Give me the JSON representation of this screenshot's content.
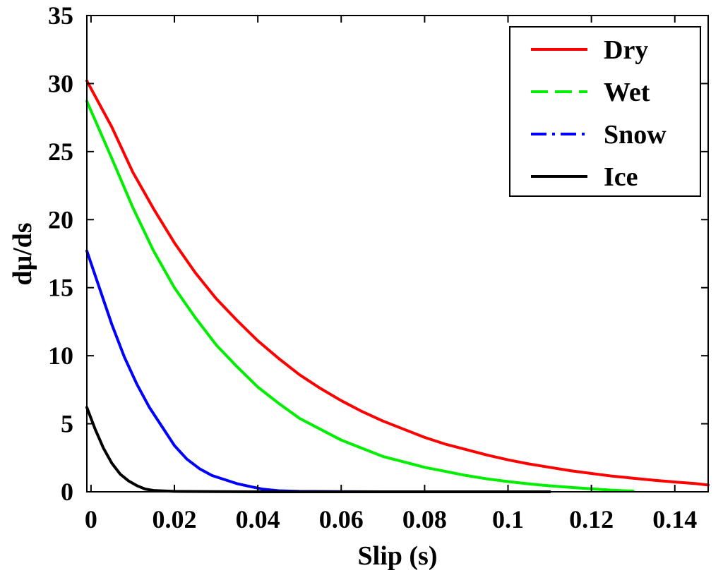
{
  "chart_data": {
    "type": "line",
    "title": "",
    "xlabel": "Slip (s)",
    "ylabel": "dμ/ds",
    "xlim": [
      -0.001,
      0.148
    ],
    "ylim": [
      0,
      35
    ],
    "grid": false,
    "legend_position": "top-right",
    "x_ticks": [
      {
        "value": 0,
        "label": "0"
      },
      {
        "value": 0.02,
        "label": "0.02"
      },
      {
        "value": 0.04,
        "label": "0.04"
      },
      {
        "value": 0.06,
        "label": "0.06"
      },
      {
        "value": 0.08,
        "label": "0.08"
      },
      {
        "value": 0.1,
        "label": "0.1"
      },
      {
        "value": 0.12,
        "label": "0.12"
      },
      {
        "value": 0.14,
        "label": "0.14"
      }
    ],
    "y_ticks": [
      {
        "value": 0,
        "label": "0"
      },
      {
        "value": 5,
        "label": "5"
      },
      {
        "value": 10,
        "label": "10"
      },
      {
        "value": 15,
        "label": "15"
      },
      {
        "value": 20,
        "label": "20"
      },
      {
        "value": 25,
        "label": "25"
      },
      {
        "value": 30,
        "label": "30"
      },
      {
        "value": 35,
        "label": "35"
      }
    ],
    "series": [
      {
        "name": "Dry",
        "color": "#ff0000",
        "dash": "solid",
        "x": [
          -0.001,
          0.005,
          0.01,
          0.015,
          0.02,
          0.025,
          0.03,
          0.035,
          0.04,
          0.045,
          0.05,
          0.055,
          0.06,
          0.065,
          0.07,
          0.075,
          0.08,
          0.085,
          0.09,
          0.095,
          0.1,
          0.105,
          0.11,
          0.115,
          0.12,
          0.125,
          0.13,
          0.135,
          0.14,
          0.145,
          0.148
        ],
        "y": [
          30.2,
          26.8,
          23.5,
          20.8,
          18.3,
          16.1,
          14.2,
          12.6,
          11.1,
          9.8,
          8.6,
          7.6,
          6.7,
          5.9,
          5.2,
          4.6,
          4.0,
          3.5,
          3.1,
          2.7,
          2.35,
          2.05,
          1.8,
          1.55,
          1.35,
          1.15,
          1.0,
          0.85,
          0.72,
          0.6,
          0.5
        ]
      },
      {
        "name": "Wet",
        "color": "#00ee00",
        "dash": "dashed",
        "x": [
          -0.001,
          0.005,
          0.01,
          0.015,
          0.02,
          0.025,
          0.03,
          0.035,
          0.04,
          0.045,
          0.05,
          0.055,
          0.06,
          0.065,
          0.07,
          0.075,
          0.08,
          0.085,
          0.09,
          0.095,
          0.1,
          0.105,
          0.11,
          0.115,
          0.12,
          0.125,
          0.13
        ],
        "y": [
          28.7,
          24.5,
          20.9,
          17.7,
          15.0,
          12.8,
          10.8,
          9.2,
          7.7,
          6.5,
          5.4,
          4.6,
          3.8,
          3.2,
          2.6,
          2.2,
          1.8,
          1.5,
          1.2,
          0.95,
          0.75,
          0.58,
          0.44,
          0.32,
          0.22,
          0.12,
          0.05
        ]
      },
      {
        "name": "Snow",
        "color": "#0000ff",
        "dash": "dashdot",
        "x": [
          -0.001,
          0.002,
          0.005,
          0.008,
          0.011,
          0.014,
          0.017,
          0.02,
          0.023,
          0.026,
          0.029,
          0.032,
          0.035,
          0.038,
          0.041,
          0.045,
          0.05,
          0.06,
          0.07,
          0.08,
          0.09,
          0.1,
          0.11
        ],
        "y": [
          17.7,
          15.0,
          12.3,
          9.9,
          7.9,
          6.2,
          4.8,
          3.4,
          2.4,
          1.7,
          1.2,
          0.9,
          0.6,
          0.4,
          0.2,
          0.08,
          0.03,
          0.01,
          0,
          0,
          0,
          0,
          0
        ]
      },
      {
        "name": "Ice",
        "color": "#000000",
        "dash": "solid",
        "x": [
          -0.001,
          0.001,
          0.003,
          0.005,
          0.007,
          0.009,
          0.011,
          0.013,
          0.015,
          0.02,
          0.03,
          0.04,
          0.06,
          0.08,
          0.1,
          0.11
        ],
        "y": [
          6.2,
          4.6,
          3.2,
          2.1,
          1.3,
          0.8,
          0.45,
          0.2,
          0.1,
          0.03,
          0.01,
          0,
          0,
          0,
          0,
          0
        ]
      }
    ]
  }
}
